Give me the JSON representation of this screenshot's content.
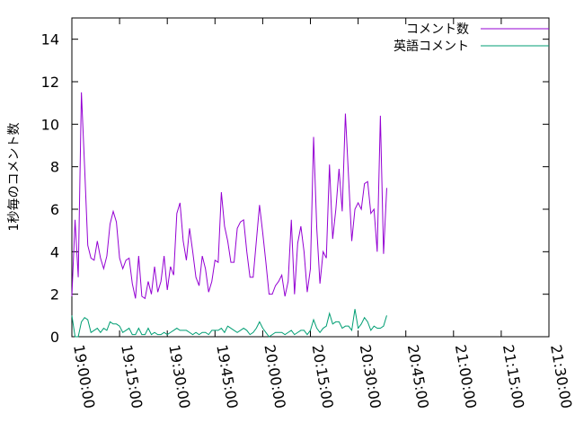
{
  "chart_data": {
    "type": "line",
    "ylabel": "1秒毎のコメント数",
    "xlabel": "",
    "ylim": [
      0,
      15
    ],
    "xlim": [
      "19:00:00",
      "21:30:00"
    ],
    "y_ticks": [
      "0",
      "2",
      "4",
      "6",
      "8",
      "10",
      "12",
      "14"
    ],
    "x_ticks": [
      "19:00:00",
      "19:15:00",
      "19:30:00",
      "19:45:00",
      "20:00:00",
      "20:15:00",
      "20:30:00",
      "20:45:00",
      "21:00:00",
      "21:15:00",
      "21:30:00"
    ],
    "grid": false,
    "legend_position": "top-right",
    "series": [
      {
        "name": "コメント数",
        "color": "#9400d3",
        "points": [
          [
            "19:00:00",
            1.9
          ],
          [
            "19:01:00",
            5.5
          ],
          [
            "19:02:00",
            2.8
          ],
          [
            "19:03:00",
            11.5
          ],
          [
            "19:04:00",
            8.0
          ],
          [
            "19:05:00",
            4.3
          ],
          [
            "19:06:00",
            3.7
          ],
          [
            "19:07:00",
            3.6
          ],
          [
            "19:08:00",
            4.5
          ],
          [
            "19:09:00",
            3.7
          ],
          [
            "19:10:00",
            3.2
          ],
          [
            "19:11:00",
            3.8
          ],
          [
            "19:12:00",
            5.3
          ],
          [
            "19:13:00",
            5.9
          ],
          [
            "19:14:00",
            5.4
          ],
          [
            "19:15:00",
            3.7
          ],
          [
            "19:16:00",
            3.2
          ],
          [
            "19:17:00",
            3.6
          ],
          [
            "19:18:00",
            3.7
          ],
          [
            "19:19:00",
            2.5
          ],
          [
            "19:20:00",
            1.8
          ],
          [
            "19:21:00",
            3.8
          ],
          [
            "19:22:00",
            1.9
          ],
          [
            "19:23:00",
            1.8
          ],
          [
            "19:24:00",
            2.6
          ],
          [
            "19:25:00",
            2.0
          ],
          [
            "19:26:00",
            3.3
          ],
          [
            "19:27:00",
            2.1
          ],
          [
            "19:28:00",
            2.6
          ],
          [
            "19:29:00",
            3.8
          ],
          [
            "19:30:00",
            2.2
          ],
          [
            "19:31:00",
            3.3
          ],
          [
            "19:32:00",
            2.9
          ],
          [
            "19:33:00",
            5.8
          ],
          [
            "19:34:00",
            6.3
          ],
          [
            "19:35:00",
            4.5
          ],
          [
            "19:36:00",
            3.6
          ],
          [
            "19:37:00",
            5.1
          ],
          [
            "19:38:00",
            4.0
          ],
          [
            "19:39:00",
            2.8
          ],
          [
            "19:40:00",
            2.4
          ],
          [
            "19:41:00",
            3.8
          ],
          [
            "19:42:00",
            3.2
          ],
          [
            "19:43:00",
            2.1
          ],
          [
            "19:44:00",
            2.6
          ],
          [
            "19:45:00",
            3.6
          ],
          [
            "19:46:00",
            3.5
          ],
          [
            "19:47:00",
            6.8
          ],
          [
            "19:48:00",
            5.2
          ],
          [
            "19:49:00",
            4.5
          ],
          [
            "19:50:00",
            3.5
          ],
          [
            "19:51:00",
            3.5
          ],
          [
            "19:52:00",
            5.1
          ],
          [
            "19:53:00",
            5.4
          ],
          [
            "19:54:00",
            5.5
          ],
          [
            "19:55:00",
            4.0
          ],
          [
            "19:56:00",
            2.8
          ],
          [
            "19:57:00",
            2.8
          ],
          [
            "19:58:00",
            4.5
          ],
          [
            "19:59:00",
            6.2
          ],
          [
            "20:00:00",
            4.9
          ],
          [
            "20:01:00",
            3.5
          ],
          [
            "20:02:00",
            2.0
          ],
          [
            "20:03:00",
            2.0
          ],
          [
            "20:04:00",
            2.4
          ],
          [
            "20:05:00",
            2.6
          ],
          [
            "20:06:00",
            2.9
          ],
          [
            "20:07:00",
            1.9
          ],
          [
            "20:08:00",
            2.6
          ],
          [
            "20:09:00",
            5.5
          ],
          [
            "20:10:00",
            2.0
          ],
          [
            "20:11:00",
            4.4
          ],
          [
            "20:12:00",
            5.2
          ],
          [
            "20:13:00",
            4.0
          ],
          [
            "20:14:00",
            2.1
          ],
          [
            "20:15:00",
            3.2
          ],
          [
            "20:16:00",
            9.4
          ],
          [
            "20:17:00",
            5.1
          ],
          [
            "20:18:00",
            2.5
          ],
          [
            "20:19:00",
            4.0
          ],
          [
            "20:20:00",
            3.7
          ],
          [
            "20:21:00",
            8.1
          ],
          [
            "20:22:00",
            4.6
          ],
          [
            "20:23:00",
            6.0
          ],
          [
            "20:24:00",
            7.9
          ],
          [
            "20:25:00",
            5.9
          ],
          [
            "20:26:00",
            10.5
          ],
          [
            "20:27:00",
            7.5
          ],
          [
            "20:28:00",
            4.5
          ],
          [
            "20:29:00",
            6.0
          ],
          [
            "20:30:00",
            6.3
          ],
          [
            "20:31:00",
            6.0
          ],
          [
            "20:32:00",
            7.2
          ],
          [
            "20:33:00",
            7.3
          ],
          [
            "20:34:00",
            5.8
          ],
          [
            "20:35:00",
            6.0
          ],
          [
            "20:36:00",
            4.0
          ],
          [
            "20:37:00",
            10.4
          ],
          [
            "20:38:00",
            3.9
          ],
          [
            "20:39:00",
            7.0
          ]
        ]
      },
      {
        "name": "英語コメント",
        "color": "#009e73",
        "points": [
          [
            "19:00:00",
            1.0
          ],
          [
            "19:01:00",
            0.0
          ],
          [
            "19:02:00",
            0.0
          ],
          [
            "19:03:00",
            0.7
          ],
          [
            "19:04:00",
            0.9
          ],
          [
            "19:05:00",
            0.8
          ],
          [
            "19:06:00",
            0.2
          ],
          [
            "19:07:00",
            0.3
          ],
          [
            "19:08:00",
            0.4
          ],
          [
            "19:09:00",
            0.2
          ],
          [
            "19:10:00",
            0.4
          ],
          [
            "19:11:00",
            0.3
          ],
          [
            "19:12:00",
            0.7
          ],
          [
            "19:13:00",
            0.6
          ],
          [
            "19:14:00",
            0.6
          ],
          [
            "19:15:00",
            0.5
          ],
          [
            "19:16:00",
            0.2
          ],
          [
            "19:17:00",
            0.3
          ],
          [
            "19:18:00",
            0.4
          ],
          [
            "19:19:00",
            0.1
          ],
          [
            "19:20:00",
            0.1
          ],
          [
            "19:21:00",
            0.4
          ],
          [
            "19:22:00",
            0.1
          ],
          [
            "19:23:00",
            0.1
          ],
          [
            "19:24:00",
            0.4
          ],
          [
            "19:25:00",
            0.1
          ],
          [
            "19:26:00",
            0.2
          ],
          [
            "19:27:00",
            0.1
          ],
          [
            "19:28:00",
            0.1
          ],
          [
            "19:29:00",
            0.2
          ],
          [
            "19:30:00",
            0.1
          ],
          [
            "19:31:00",
            0.2
          ],
          [
            "19:32:00",
            0.3
          ],
          [
            "19:33:00",
            0.4
          ],
          [
            "19:34:00",
            0.3
          ],
          [
            "19:35:00",
            0.3
          ],
          [
            "19:36:00",
            0.3
          ],
          [
            "19:37:00",
            0.2
          ],
          [
            "19:38:00",
            0.1
          ],
          [
            "19:39:00",
            0.2
          ],
          [
            "19:40:00",
            0.1
          ],
          [
            "19:41:00",
            0.2
          ],
          [
            "19:42:00",
            0.2
          ],
          [
            "19:43:00",
            0.1
          ],
          [
            "19:44:00",
            0.3
          ],
          [
            "19:45:00",
            0.3
          ],
          [
            "19:46:00",
            0.3
          ],
          [
            "19:47:00",
            0.4
          ],
          [
            "19:48:00",
            0.2
          ],
          [
            "19:49:00",
            0.5
          ],
          [
            "19:50:00",
            0.4
          ],
          [
            "19:51:00",
            0.3
          ],
          [
            "19:52:00",
            0.2
          ],
          [
            "19:53:00",
            0.3
          ],
          [
            "19:54:00",
            0.4
          ],
          [
            "19:55:00",
            0.3
          ],
          [
            "19:56:00",
            0.1
          ],
          [
            "19:57:00",
            0.2
          ],
          [
            "19:58:00",
            0.4
          ],
          [
            "19:59:00",
            0.7
          ],
          [
            "20:00:00",
            0.4
          ],
          [
            "20:01:00",
            0.2
          ],
          [
            "20:02:00",
            0.0
          ],
          [
            "20:03:00",
            0.1
          ],
          [
            "20:04:00",
            0.2
          ],
          [
            "20:05:00",
            0.2
          ],
          [
            "20:06:00",
            0.2
          ],
          [
            "20:07:00",
            0.1
          ],
          [
            "20:08:00",
            0.2
          ],
          [
            "20:09:00",
            0.3
          ],
          [
            "20:10:00",
            0.1
          ],
          [
            "20:11:00",
            0.2
          ],
          [
            "20:12:00",
            0.3
          ],
          [
            "20:13:00",
            0.3
          ],
          [
            "20:14:00",
            0.1
          ],
          [
            "20:15:00",
            0.3
          ],
          [
            "20:16:00",
            0.8
          ],
          [
            "20:17:00",
            0.4
          ],
          [
            "20:18:00",
            0.2
          ],
          [
            "20:19:00",
            0.4
          ],
          [
            "20:20:00",
            0.5
          ],
          [
            "20:21:00",
            1.1
          ],
          [
            "20:22:00",
            0.6
          ],
          [
            "20:23:00",
            0.7
          ],
          [
            "20:24:00",
            0.7
          ],
          [
            "20:25:00",
            0.4
          ],
          [
            "20:26:00",
            0.5
          ],
          [
            "20:27:00",
            0.5
          ],
          [
            "20:28:00",
            0.3
          ],
          [
            "20:29:00",
            1.3
          ],
          [
            "20:30:00",
            0.4
          ],
          [
            "20:31:00",
            0.6
          ],
          [
            "20:32:00",
            0.9
          ],
          [
            "20:33:00",
            0.7
          ],
          [
            "20:34:00",
            0.3
          ],
          [
            "20:35:00",
            0.5
          ],
          [
            "20:36:00",
            0.4
          ],
          [
            "20:37:00",
            0.4
          ],
          [
            "20:38:00",
            0.5
          ],
          [
            "20:39:00",
            1.0
          ]
        ]
      }
    ]
  }
}
